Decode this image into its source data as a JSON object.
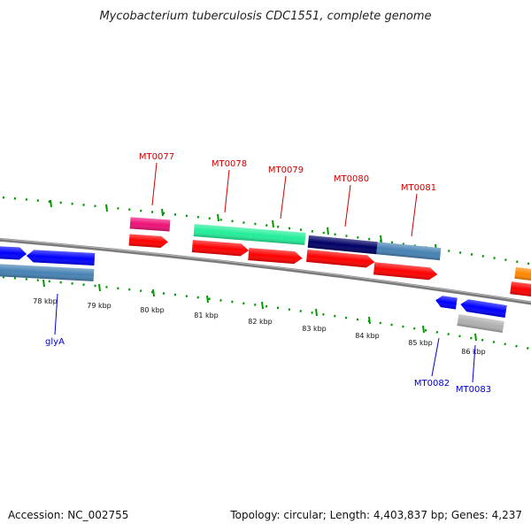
{
  "title": "Mycobacterium tuberculosis CDC1551, complete genome",
  "footer": {
    "accession": "Accession: NC_002755",
    "summary": "Topology: circular; Length: 4,403,837 bp; Genes: 4,237"
  },
  "scale_labels": [
    "78 kbp",
    "79 kbp",
    "80 kbp",
    "81 kbp",
    "82 kbp",
    "83 kbp",
    "84 kbp",
    "85 kbp",
    "86 kbp"
  ],
  "gene_labels": {
    "MT0077": "MT0077",
    "MT0078": "MT0078",
    "MT0079": "MT0079",
    "MT0080": "MT0080",
    "MT0081": "MT0081",
    "MT0082": "MT0082",
    "MT0083": "MT0083",
    "glyA": "glyA"
  },
  "colors": {
    "backbone": "#808080",
    "forward_label": "#cc0000",
    "reverse_label": "#0000cc",
    "tick": "#009900",
    "cds_forward": "#ff0000",
    "cds_reverse": "#0000ff",
    "gene_pink": "#ee1177",
    "gene_green": "#22ee99",
    "gene_navy": "#000066",
    "gene_steel": "#4682b4",
    "gene_orange": "#ff8800",
    "gene_silver": "#b0b0b0"
  }
}
